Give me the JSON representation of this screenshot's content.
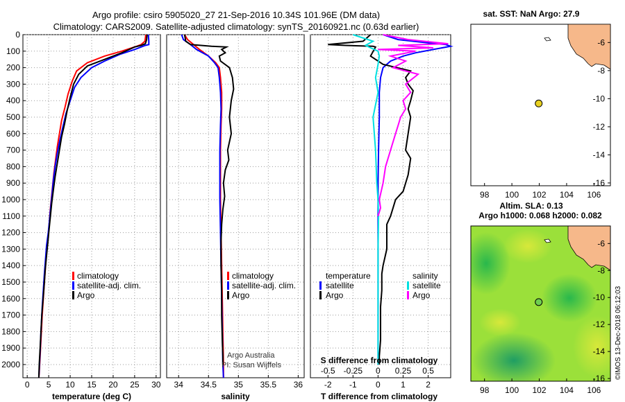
{
  "header": {
    "line1": "Argo profile: csiro 5905020_27 21-Sep-2016 10.34S 101.96E (DM data)",
    "line2": "Climatology: CARS2009. Satellite-adjusted climatology: synTS_20160921.nc (0.63d earlier)"
  },
  "colors": {
    "argo": "#000000",
    "clim": "#ff0000",
    "sat": "#0000ff",
    "sal_diff": "#ff00ff",
    "sat_sal": "#00e0e0",
    "land": "#f6b88a",
    "marker": "#e8d020",
    "sla_field": "#9be03a"
  },
  "footer": {
    "credit": "©IMOS 13-Dec-2018 06:12:03"
  },
  "notes": {
    "line1": "Argo Australia",
    "line2": "PI: Susan Wijffels"
  },
  "legend_left": {
    "clim": "climatology",
    "sat": "satellite-adj. clim.",
    "argo": "Argo"
  },
  "legend_diff": {
    "temp_title": "temperature",
    "sal_title": "salinity",
    "sat": "satellite",
    "argo": "Argo"
  },
  "maps": {
    "sst_title": "sat. SST: NaN Argo: 27.9",
    "sla_title1": "Altim. SLA: 0.13",
    "sla_title2": "Argo h1000: 0.068 h2000: 0.082",
    "lon_ticks": [
      "98",
      "100",
      "102",
      "104",
      "106"
    ],
    "lat_ticks": [
      "-6",
      "-8",
      "-10",
      "-12",
      "-14",
      "-16"
    ],
    "lon_range": [
      97,
      107.2
    ],
    "lat_range": [
      -16.2,
      -4.7
    ],
    "float_pos": {
      "lon": 101.96,
      "lat": -10.34
    }
  },
  "chart_data": [
    {
      "type": "line",
      "id": "temperature",
      "xlabel": "temperature (deg C)",
      "ylabel": "",
      "xlim": [
        -1,
        31
      ],
      "ylim": [
        2080,
        0
      ],
      "xticks": [
        "0",
        "5",
        "10",
        "15",
        "20",
        "25",
        "30"
      ],
      "yticks": [
        "0",
        "100",
        "200",
        "300",
        "400",
        "500",
        "600",
        "700",
        "800",
        "900",
        "1000",
        "1100",
        "1200",
        "1300",
        "1400",
        "1500",
        "1600",
        "1700",
        "1800",
        "1900",
        "2000"
      ],
      "series": [
        {
          "name": "climatology",
          "color": "#ff0000",
          "x": [
            27.6,
            27.4,
            26.5,
            25.5,
            22,
            18,
            14,
            11.5,
            10.5,
            9.5,
            8.8,
            8,
            7.5,
            7,
            6.6,
            6.2,
            5.9,
            5.6,
            5.3,
            5.1,
            4.8,
            4.5,
            4,
            3.5,
            3.2,
            3,
            2.8,
            2.7
          ],
          "y": [
            0,
            40,
            60,
            70,
            100,
            130,
            170,
            220,
            280,
            360,
            440,
            520,
            600,
            680,
            760,
            840,
            920,
            1000,
            1080,
            1160,
            1240,
            1320,
            1500,
            1700,
            1850,
            1950,
            2050,
            2080
          ]
        },
        {
          "name": "satellite-adj. clim.",
          "color": "#0000ff",
          "x": [
            28.2,
            28.3,
            28.3,
            27.5,
            25,
            21.5,
            18,
            15,
            12.5,
            11,
            10,
            9,
            8.3,
            7.6,
            7,
            6.5,
            6.1,
            5.8,
            5.5,
            5.2,
            4.9,
            4.5,
            4,
            3.5,
            3.2,
            3,
            2.8,
            2.7
          ],
          "y": [
            0,
            40,
            60,
            65,
            90,
            120,
            160,
            200,
            260,
            320,
            400,
            480,
            560,
            640,
            720,
            800,
            880,
            960,
            1040,
            1120,
            1200,
            1280,
            1450,
            1650,
            1800,
            1920,
            2030,
            2080
          ]
        },
        {
          "name": "Argo",
          "color": "#000000",
          "x": [
            27.9,
            27.8,
            27.5,
            26.5,
            25,
            22,
            18,
            14,
            12,
            10.8,
            10,
            9.3,
            8.7,
            8,
            7.5,
            7,
            6.5,
            6.1,
            5.7,
            5.4,
            5.1,
            4.8,
            4.5,
            4.2,
            4,
            3.7,
            3.4,
            3.2,
            3,
            2.8,
            2.7
          ],
          "y": [
            0,
            30,
            55,
            65,
            75,
            110,
            150,
            190,
            240,
            300,
            380,
            460,
            540,
            620,
            700,
            780,
            860,
            940,
            1020,
            1100,
            1180,
            1260,
            1340,
            1420,
            1500,
            1600,
            1700,
            1800,
            1900,
            2000,
            2080
          ]
        }
      ]
    },
    {
      "type": "line",
      "id": "salinity",
      "xlabel": "salinity",
      "xlim": [
        33.8,
        36.1
      ],
      "ylim": [
        2080,
        0
      ],
      "xticks": [
        "34",
        "34.5",
        "35",
        "35.5",
        "36"
      ],
      "series": [
        {
          "name": "climatology",
          "color": "#ff0000",
          "x": [
            34.1,
            34.15,
            34.25,
            34.35,
            34.5,
            34.62,
            34.68,
            34.7,
            34.72,
            34.72,
            34.71,
            34.7,
            34.7,
            34.7,
            34.71,
            34.72,
            34.73,
            34.74,
            34.75,
            34.75
          ],
          "y": [
            0,
            30,
            60,
            90,
            130,
            170,
            200,
            260,
            350,
            450,
            550,
            700,
            850,
            1000,
            1200,
            1400,
            1600,
            1800,
            2000,
            2080
          ]
        },
        {
          "name": "satellite-adj. clim.",
          "color": "#0000ff",
          "x": [
            34.05,
            34.08,
            34.2,
            34.3,
            34.5,
            34.6,
            34.66,
            34.68,
            34.7,
            34.71,
            34.7,
            34.69,
            34.69,
            34.69,
            34.7,
            34.71,
            34.72,
            34.73,
            34.74,
            34.75
          ],
          "y": [
            0,
            30,
            60,
            90,
            130,
            170,
            200,
            260,
            350,
            450,
            550,
            700,
            850,
            1000,
            1200,
            1400,
            1600,
            1800,
            2000,
            2080
          ]
        },
        {
          "name": "Argo",
          "color": "#000000",
          "x": [
            34.1,
            34.12,
            34.2,
            34.55,
            34.8,
            34.72,
            34.78,
            34.68,
            34.7,
            34.85,
            34.9,
            34.92,
            34.88,
            34.85,
            34.88,
            34.82,
            34.84,
            34.78,
            34.75,
            34.77,
            34.74,
            34.72,
            34.71,
            34.71,
            34.72,
            34.72,
            34.73,
            34.74,
            34.74
          ],
          "y": [
            0,
            40,
            60,
            70,
            75,
            90,
            110,
            130,
            160,
            200,
            260,
            330,
            400,
            500,
            600,
            700,
            760,
            820,
            900,
            980,
            1060,
            1150,
            1250,
            1400,
            1550,
            1700,
            1850,
            1950,
            2000
          ]
        }
      ]
    },
    {
      "type": "line",
      "id": "differences",
      "xlabel": "T difference from climatology",
      "top_label": "S difference from climatology",
      "xlim": [
        -2.7,
        2.9
      ],
      "ylim": [
        2080,
        0
      ],
      "xticks": [
        "-2",
        "-1",
        "0",
        "1",
        "2"
      ],
      "top_ticks": [
        "-0.5",
        "-0.25",
        "0",
        "0.25",
        "0.5"
      ],
      "series": [
        {
          "name": "temperature satellite",
          "color": "#0000ff",
          "x": [
            0.2,
            0.8,
            2,
            2.7,
            2.9,
            2.2,
            1.5,
            1,
            0.5,
            0.2,
            0.1,
            0.05,
            0.05,
            0.02,
            0,
            0,
            0,
            0,
            0
          ],
          "y": [
            0,
            30,
            50,
            60,
            70,
            90,
            110,
            130,
            160,
            200,
            260,
            350,
            500,
            700,
            900,
            1200,
            1500,
            1800,
            2000
          ]
        },
        {
          "name": "temperature Argo",
          "color": "#000000",
          "x": [
            -0.3,
            -0.6,
            -2,
            -1.3,
            -0.2,
            -0.1,
            -0.3,
            0.2,
            1.3,
            1.1,
            1.2,
            1.4,
            1.3,
            1.2,
            1.3,
            1.2,
            1.1,
            1.3,
            1.2,
            1,
            0.7,
            0.6,
            0.5,
            0.35,
            0.35,
            0.2,
            0.15,
            0.15,
            0.1,
            0.1,
            0.1,
            0.05,
            0.05
          ],
          "y": [
            0,
            40,
            60,
            65,
            70,
            75,
            130,
            180,
            220,
            260,
            300,
            340,
            400,
            450,
            500,
            600,
            700,
            750,
            850,
            950,
            1000,
            1050,
            1100,
            1150,
            1300,
            1400,
            1450,
            1550,
            1650,
            1750,
            1850,
            1950,
            2000
          ]
        },
        {
          "name": "salinity satellite",
          "color": "#00e0e0",
          "x": [
            -1,
            -0.2,
            -0.5,
            -0.3,
            0,
            0.05,
            0,
            -0.1,
            0,
            -0.2,
            -0.1,
            -0.05,
            0,
            0.02,
            0,
            0,
            0,
            0
          ],
          "y": [
            0,
            40,
            65,
            80,
            100,
            130,
            180,
            260,
            350,
            500,
            700,
            900,
            1000,
            1100,
            1300,
            1600,
            1800,
            2000
          ]
        },
        {
          "name": "salinity Argo",
          "color": "#ff00ff",
          "x": [
            0.2,
            1.2,
            2.8,
            0.8,
            2.2,
            0,
            1.5,
            0.5,
            1.1,
            0.6,
            1.6,
            1.1,
            1.3,
            1,
            1.1,
            0.9,
            0.8,
            0.7,
            0.5,
            0.3,
            0.2,
            0.05,
            0.1,
            0
          ],
          "y": [
            0,
            30,
            55,
            65,
            80,
            90,
            100,
            130,
            160,
            200,
            240,
            300,
            350,
            400,
            450,
            500,
            550,
            600,
            700,
            800,
            900,
            1000,
            1050,
            1100
          ]
        }
      ]
    }
  ]
}
